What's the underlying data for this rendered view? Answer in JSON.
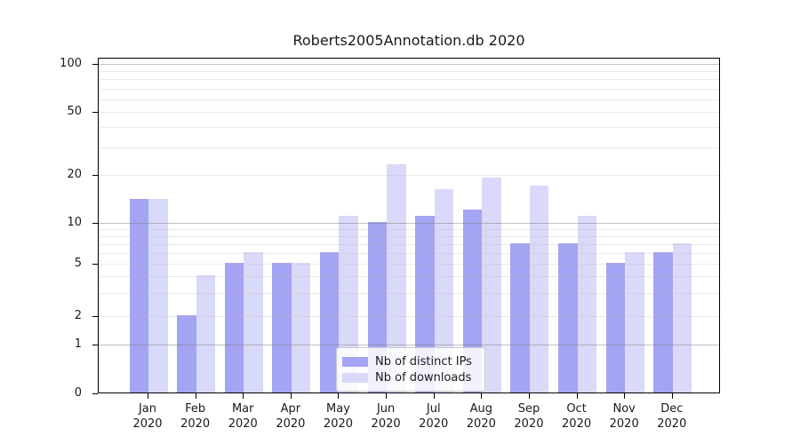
{
  "title": "Roberts2005Annotation.db 2020",
  "legend": {
    "items": [
      {
        "label": "Nb of distinct IPs",
        "color": "#a4a4f4"
      },
      {
        "label": "Nb of downloads",
        "color": "#d9d9f9"
      }
    ]
  },
  "chart_data": {
    "type": "bar",
    "title": "Roberts2005Annotation.db 2020",
    "categories": [
      "Jan",
      "Feb",
      "Mar",
      "Apr",
      "May",
      "Jun",
      "Jul",
      "Aug",
      "Sep",
      "Oct",
      "Nov",
      "Dec"
    ],
    "category_sublabel": "2020",
    "series": [
      {
        "name": "Nb of distinct IPs",
        "color": "#a4a4f4",
        "values": [
          14,
          2,
          5,
          5,
          6,
          10,
          11,
          12,
          7,
          7,
          5,
          6
        ]
      },
      {
        "name": "Nb of downloads",
        "color": "#d9d9f9",
        "values": [
          14,
          4,
          6,
          5,
          11,
          23,
          16,
          19,
          17,
          11,
          6,
          7
        ]
      }
    ],
    "xlabel": "",
    "ylabel": "",
    "yscale": "symlog",
    "yticks": [
      0,
      1,
      2,
      5,
      10,
      20,
      50,
      100
    ],
    "ylim": [
      0,
      110
    ],
    "grid": true,
    "grid_major_at": [
      1,
      10,
      100
    ],
    "grid_minor_at": [
      2,
      3,
      4,
      5,
      6,
      7,
      8,
      9,
      20,
      30,
      40,
      50,
      60,
      70,
      80,
      90
    ],
    "legend_position": "lower-center"
  }
}
